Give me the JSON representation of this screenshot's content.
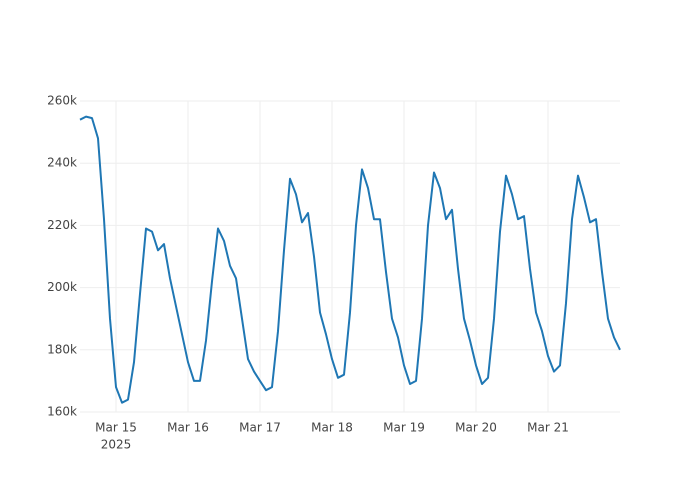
{
  "chart_data": {
    "type": "line",
    "x": [
      "2025-03-14 12:00",
      "2025-03-14 14:00",
      "2025-03-14 16:00",
      "2025-03-14 18:00",
      "2025-03-14 20:00",
      "2025-03-14 22:00",
      "2025-03-15 00:00",
      "2025-03-15 02:00",
      "2025-03-15 04:00",
      "2025-03-15 06:00",
      "2025-03-15 08:00",
      "2025-03-15 10:00",
      "2025-03-15 12:00",
      "2025-03-15 14:00",
      "2025-03-15 16:00",
      "2025-03-15 18:00",
      "2025-03-15 20:00",
      "2025-03-15 22:00",
      "2025-03-16 00:00",
      "2025-03-16 02:00",
      "2025-03-16 04:00",
      "2025-03-16 06:00",
      "2025-03-16 08:00",
      "2025-03-16 10:00",
      "2025-03-16 12:00",
      "2025-03-16 14:00",
      "2025-03-16 16:00",
      "2025-03-16 18:00",
      "2025-03-16 20:00",
      "2025-03-16 22:00",
      "2025-03-17 00:00",
      "2025-03-17 02:00",
      "2025-03-17 04:00",
      "2025-03-17 06:00",
      "2025-03-17 08:00",
      "2025-03-17 10:00",
      "2025-03-17 12:00",
      "2025-03-17 14:00",
      "2025-03-17 16:00",
      "2025-03-17 18:00",
      "2025-03-17 20:00",
      "2025-03-17 22:00",
      "2025-03-18 00:00",
      "2025-03-18 02:00",
      "2025-03-18 04:00",
      "2025-03-18 06:00",
      "2025-03-18 08:00",
      "2025-03-18 10:00",
      "2025-03-18 12:00",
      "2025-03-18 14:00",
      "2025-03-18 16:00",
      "2025-03-18 18:00",
      "2025-03-18 20:00",
      "2025-03-18 22:00",
      "2025-03-19 00:00",
      "2025-03-19 02:00",
      "2025-03-19 04:00",
      "2025-03-19 06:00",
      "2025-03-19 08:00",
      "2025-03-19 10:00",
      "2025-03-19 12:00",
      "2025-03-19 14:00",
      "2025-03-19 16:00",
      "2025-03-19 18:00",
      "2025-03-19 20:00",
      "2025-03-19 22:00",
      "2025-03-20 00:00",
      "2025-03-20 02:00",
      "2025-03-20 04:00",
      "2025-03-20 06:00",
      "2025-03-20 08:00",
      "2025-03-20 10:00",
      "2025-03-20 12:00",
      "2025-03-20 14:00",
      "2025-03-20 16:00",
      "2025-03-20 18:00",
      "2025-03-20 20:00",
      "2025-03-20 22:00",
      "2025-03-21 00:00",
      "2025-03-21 02:00",
      "2025-03-21 04:00",
      "2025-03-21 06:00",
      "2025-03-21 08:00",
      "2025-03-21 10:00",
      "2025-03-21 12:00",
      "2025-03-21 14:00",
      "2025-03-21 16:00",
      "2025-03-21 18:00",
      "2025-03-21 20:00",
      "2025-03-21 22:00",
      "2025-03-22 00:00"
    ],
    "series": [
      {
        "color": "#1f77b4",
        "values": [
          254000,
          255000,
          254500,
          248000,
          222000,
          190000,
          168000,
          163000,
          164000,
          176000,
          198000,
          219000,
          218000,
          212000,
          214000,
          203000,
          194000,
          185000,
          176000,
          170000,
          170000,
          183000,
          202000,
          219000,
          215000,
          207000,
          203000,
          190000,
          177000,
          173000,
          170000,
          167000,
          168000,
          186000,
          212000,
          235000,
          230000,
          221000,
          224000,
          210000,
          192000,
          185000,
          177000,
          171000,
          172000,
          192000,
          220000,
          238000,
          232000,
          222000,
          222000,
          205000,
          190000,
          184000,
          175000,
          169000,
          170000,
          190000,
          220000,
          237000,
          232000,
          222000,
          225000,
          206000,
          190000,
          183000,
          175000,
          169000,
          171000,
          190000,
          218000,
          236000,
          230000,
          222000,
          223000,
          206000,
          192000,
          186000,
          178000,
          173000,
          175000,
          195000,
          222000,
          236000,
          229000,
          221000,
          222000,
          205000,
          190000,
          184000,
          180000
        ]
      }
    ],
    "xlim": [
      "2025-03-14 12:00",
      "2025-03-22 00:00"
    ],
    "xticks": [
      {
        "value": "2025-03-15 00:00",
        "label": "Mar 15"
      },
      {
        "value": "2025-03-16 00:00",
        "label": "Mar 16"
      },
      {
        "value": "2025-03-17 00:00",
        "label": "Mar 17"
      },
      {
        "value": "2025-03-18 00:00",
        "label": "Mar 18"
      },
      {
        "value": "2025-03-19 00:00",
        "label": "Mar 19"
      },
      {
        "value": "2025-03-20 00:00",
        "label": "Mar 20"
      },
      {
        "value": "2025-03-21 00:00",
        "label": "Mar 21"
      }
    ],
    "x_year_label": "2025",
    "ylim": [
      160000,
      260000
    ],
    "yticks": [
      {
        "value": 160000,
        "label": "160k"
      },
      {
        "value": 180000,
        "label": "180k"
      },
      {
        "value": 200000,
        "label": "200k"
      },
      {
        "value": 220000,
        "label": "220k"
      },
      {
        "value": 240000,
        "label": "240k"
      },
      {
        "value": 260000,
        "label": "260k"
      }
    ],
    "grid": true
  }
}
